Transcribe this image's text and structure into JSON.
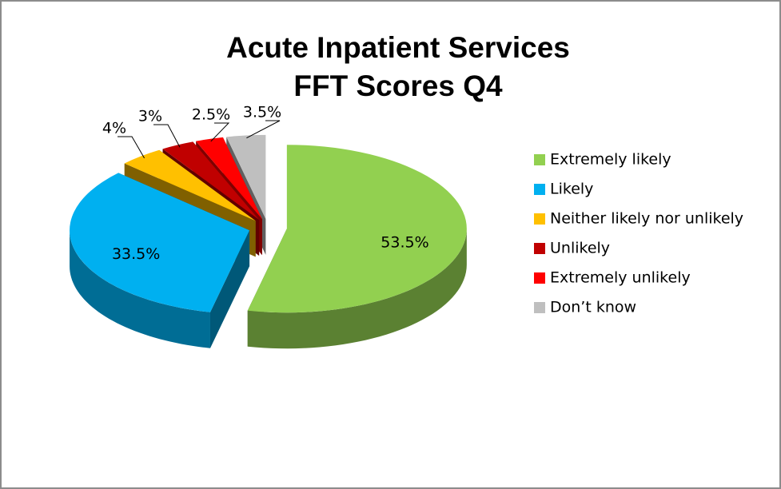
{
  "chart_data": {
    "type": "pie",
    "title": [
      "Acute Inpatient Services",
      "FFT Scores Q4"
    ],
    "categories": [
      "Extremely likely",
      "Likely",
      "Neither likely nor unlikely",
      "Unlikely",
      "Extremely unlikely",
      "Don’t know"
    ],
    "values": [
      53.5,
      33.5,
      4,
      3,
      2.5,
      3.5
    ],
    "value_labels": [
      "53.5%",
      "33.5%",
      "4%",
      "3%",
      "2.5%",
      "3.5%"
    ],
    "colors": [
      "#92d050",
      "#00b0f0",
      "#ffc000",
      "#c00000",
      "#ff0000",
      "#bfbfbf"
    ],
    "legend": "right"
  }
}
